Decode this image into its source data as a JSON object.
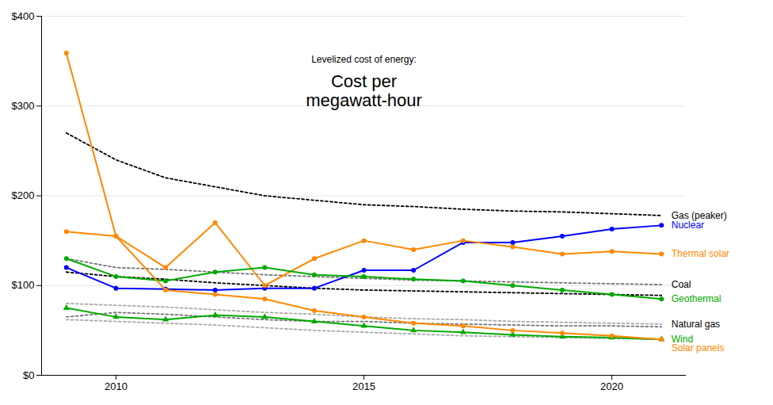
{
  "chart_data": {
    "type": "line",
    "title": "Cost per\nmegawatt-hour",
    "subtitle": "Levelized cost of energy:",
    "x": [
      2009,
      2010,
      2011,
      2012,
      2013,
      2014,
      2015,
      2016,
      2017,
      2018,
      2019,
      2020,
      2021
    ],
    "xlim": [
      2008.5,
      2021.5
    ],
    "xticks": [
      2010,
      2015,
      2020
    ],
    "ylim": [
      0,
      400
    ],
    "yticks": [
      {
        "value": 0,
        "label": "$0"
      },
      {
        "value": 100,
        "label": "$100"
      },
      {
        "value": 200,
        "label": "$200"
      },
      {
        "value": 300,
        "label": "$300"
      },
      {
        "value": 400,
        "label": "$400"
      }
    ],
    "grid": true,
    "series": [
      {
        "color": "#000000",
        "line_style": "dotted",
        "values": [
          270,
          240,
          220,
          210,
          200,
          195,
          190,
          188,
          185,
          183,
          182,
          180,
          178
        ]
      },
      {
        "color": "#000000",
        "line_style": "dotted",
        "values": [
          115,
          110,
          107,
          103,
          100,
          97,
          95,
          94,
          93,
          92,
          91,
          90,
          89
        ]
      },
      {
        "color": "#777777",
        "line_style": "dotted",
        "values": [
          130,
          120,
          118,
          115,
          112,
          110,
          108,
          106,
          105,
          104,
          103,
          102,
          101
        ]
      },
      {
        "color": "#777777",
        "line_style": "dotted",
        "values": [
          65,
          70,
          68,
          65,
          62,
          60,
          60,
          58,
          57,
          56,
          55,
          55,
          54
        ]
      },
      {
        "color": "#aaaaaa",
        "line_style": "dotted",
        "values": [
          80,
          78,
          76,
          73,
          70,
          68,
          65,
          63,
          62,
          60,
          59,
          58,
          57
        ]
      },
      {
        "color": "#aaaaaa",
        "line_style": "dotted",
        "values": [
          62,
          60,
          58,
          56,
          53,
          50,
          48,
          46,
          44,
          43,
          42,
          41,
          40
        ]
      },
      {
        "color": "#0000ff",
        "line_style": "solid",
        "marker": "circle",
        "values": [
          120,
          97,
          96,
          95,
          97,
          97,
          117,
          117,
          148,
          148,
          155,
          163,
          167
        ]
      },
      {
        "color": "#ff8800",
        "line_style": "solid",
        "marker": "circle",
        "values": [
          160,
          155,
          120,
          170,
          100,
          130,
          150,
          140,
          150,
          143,
          135,
          138,
          135
        ]
      },
      {
        "color": "#00aa00",
        "line_style": "solid",
        "marker": "circle",
        "values": [
          130,
          110,
          105,
          115,
          120,
          112,
          110,
          107,
          105,
          100,
          95,
          90,
          85
        ]
      },
      {
        "color": "#00aa00",
        "line_style": "solid",
        "marker": "triangle",
        "values": [
          75,
          65,
          62,
          67,
          65,
          60,
          55,
          50,
          48,
          45,
          43,
          42,
          40
        ]
      },
      {
        "color": "#ff8800",
        "line_style": "solid",
        "marker": "circle",
        "values": [
          359,
          155,
          95,
          90,
          85,
          72,
          65,
          58,
          55,
          50,
          47,
          44,
          40
        ]
      }
    ],
    "annotations": [
      {
        "text": "Gas (peaker)",
        "x": 2021.2,
        "y": 178,
        "color": "#000000"
      },
      {
        "text": "Nuclear",
        "x": 2021.2,
        "y": 167,
        "color": "#0000ff"
      },
      {
        "text": "Thermal solar",
        "x": 2021.2,
        "y": 135,
        "color": "#ff8800"
      },
      {
        "text": "Coal",
        "x": 2021.2,
        "y": 101,
        "color": "#000000"
      },
      {
        "text": "Geothermal",
        "x": 2021.2,
        "y": 85,
        "color": "#00aa00"
      },
      {
        "text": "Natural gas",
        "x": 2021.2,
        "y": 57,
        "color": "#000000"
      },
      {
        "text": "Wind",
        "x": 2021.2,
        "y": 40,
        "color": "#00aa00"
      },
      {
        "text": "Solar panels",
        "x": 2021.2,
        "y": 30,
        "color": "#ff8800"
      }
    ]
  }
}
